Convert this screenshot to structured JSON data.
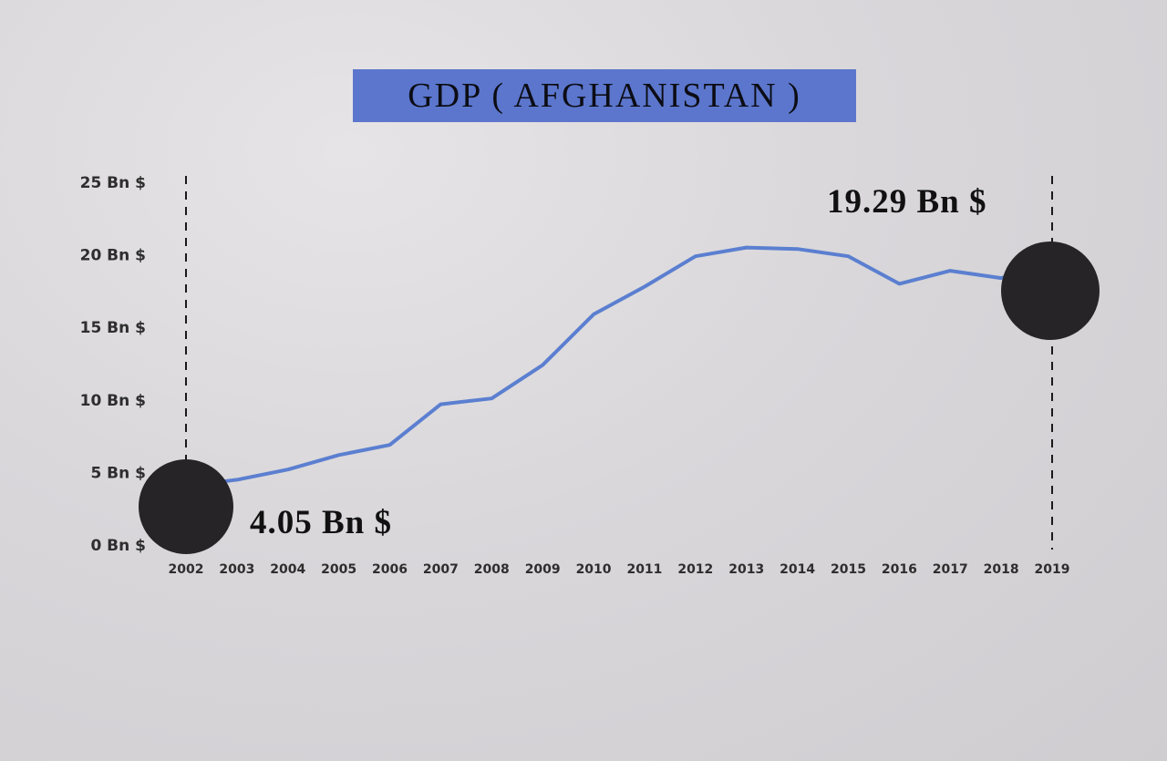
{
  "chart_data": {
    "type": "line",
    "title": "GDP ( AFGHANISTAN )",
    "xlabel": "",
    "ylabel": "",
    "ylim": [
      0,
      25
    ],
    "ytick_labels": [
      "0 Bn $",
      "5 Bn $",
      "10 Bn $",
      "15 Bn $",
      "20 Bn $",
      "25 Bn $"
    ],
    "ytick_values": [
      0,
      5,
      10,
      15,
      20,
      25
    ],
    "categories": [
      "2002",
      "2003",
      "2004",
      "2005",
      "2006",
      "2007",
      "2008",
      "2009",
      "2010",
      "2011",
      "2012",
      "2013",
      "2014",
      "2015",
      "2016",
      "2017",
      "2018",
      "2019"
    ],
    "series": [
      {
        "values": [
          4.05,
          4.5,
          5.2,
          6.2,
          6.9,
          9.7,
          10.1,
          12.4,
          15.9,
          17.8,
          19.9,
          20.5,
          20.4,
          19.9,
          18.0,
          18.9,
          18.4,
          19.29
        ]
      }
    ],
    "line_color": "#5b7fd0",
    "marker_color": "#262427",
    "annotations": [
      {
        "category": "2002",
        "value": 4.05,
        "label": "4.05 Bn $"
      },
      {
        "category": "2019",
        "value": 19.29,
        "label": "19.29 Bn $"
      }
    ],
    "grid": false,
    "legend": "none"
  }
}
